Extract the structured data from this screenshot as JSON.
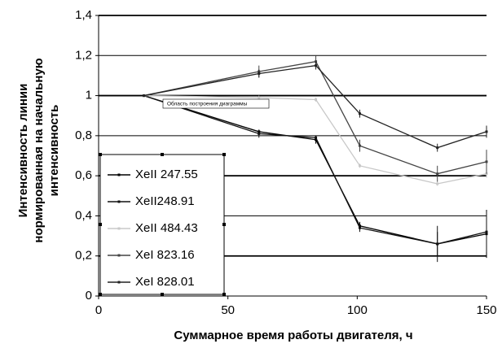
{
  "chart_data": {
    "type": "line",
    "ylabel": [
      "Интенсивность линии",
      "нормированная на начальную",
      "интенсивность"
    ],
    "xlabel": "Суммарное время работы двигателя, ч",
    "annotation": "Область построения диаграммы",
    "x": [
      17.5,
      62,
      84,
      101,
      131,
      150
    ],
    "series": [
      {
        "name": "XeII 247.55",
        "color": "#000000",
        "values": [
          1,
          0.82,
          0.78,
          0.35,
          0.26,
          0.31
        ],
        "errors": [
          0,
          0.01,
          0.02,
          0.02,
          0.06,
          0.12
        ]
      },
      {
        "name": "XeII248.91",
        "color": "#111111",
        "values": [
          1,
          0.81,
          0.79,
          0.34,
          0.26,
          0.32
        ],
        "errors": [
          0,
          0.02,
          0.01,
          0.02,
          0.09,
          0.1
        ]
      },
      {
        "name": "XeII 484.43",
        "color": "#c8c8c8",
        "values": [
          1,
          0.99,
          0.98,
          0.65,
          0.56,
          0.61
        ],
        "errors": [
          0,
          0.01,
          0.01,
          0.01,
          0.01,
          0.02
        ]
      },
      {
        "name": "XeI 823.16",
        "color": "#444444",
        "values": [
          1,
          1.12,
          1.17,
          0.75,
          0.61,
          0.67
        ],
        "errors": [
          0,
          0.03,
          0.03,
          0.03,
          0.04,
          0.06
        ]
      },
      {
        "name": "XeI 828.01",
        "color": "#222222",
        "values": [
          1,
          1.11,
          1.15,
          0.91,
          0.74,
          0.82
        ],
        "errors": [
          0,
          0.02,
          0.02,
          0.02,
          0.02,
          0.03
        ]
      }
    ],
    "xlim": [
      0,
      150
    ],
    "xticks": [
      0,
      50,
      100,
      150
    ],
    "ylim": [
      0,
      1.4
    ],
    "yticks": [
      0,
      {
        "value": 0.2,
        "label": "0,2"
      },
      {
        "value": 0.4,
        "label": "0,4"
      },
      {
        "value": 0.6,
        "label": "0,6"
      },
      {
        "value": 0.8,
        "label": "0,8"
      },
      1,
      {
        "value": 1.2,
        "label": "1,2"
      },
      {
        "value": 1.4,
        "label": "1,4"
      }
    ],
    "grid": true
  }
}
